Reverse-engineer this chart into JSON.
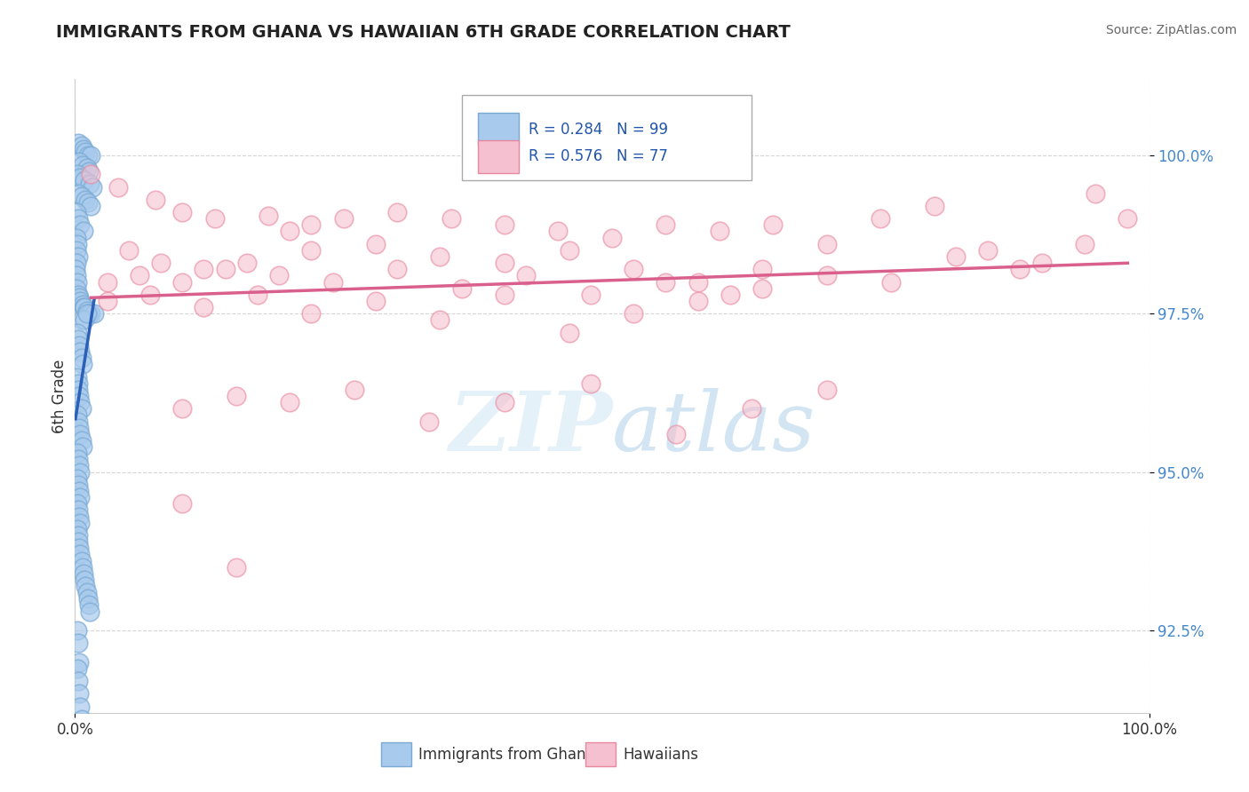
{
  "title": "IMMIGRANTS FROM GHANA VS HAWAIIAN 6TH GRADE CORRELATION CHART",
  "source": "Source: ZipAtlas.com",
  "ylabel": "6th Grade",
  "legend_blue_label": "Immigrants from Ghana",
  "legend_pink_label": "Hawaiians",
  "yticks": [
    92.5,
    95.0,
    97.5,
    100.0
  ],
  "ytick_labels": [
    "92.5%",
    "95.0%",
    "97.5%",
    "100.0%"
  ],
  "xlim": [
    0.0,
    100.0
  ],
  "ylim": [
    91.2,
    101.2
  ],
  "blue_color": "#A8CAEC",
  "blue_edge_color": "#7AAAD4",
  "blue_line_color": "#2B5FB8",
  "pink_color": "#F5C0CF",
  "pink_edge_color": "#E8889E",
  "pink_line_color": "#D95F8C",
  "background_color": "#FFFFFF",
  "tick_color": "#4488CC",
  "blue_x": [
    0.3,
    0.6,
    0.8,
    1.0,
    1.2,
    1.5,
    0.4,
    0.7,
    1.1,
    1.3,
    0.2,
    0.5,
    0.9,
    1.4,
    1.6,
    0.3,
    0.6,
    1.0,
    1.2,
    1.5,
    0.1,
    0.3,
    0.5,
    0.8,
    0.1,
    0.2,
    0.1,
    0.3,
    0.1,
    0.05,
    0.1,
    0.2,
    0.1,
    0.3,
    0.4,
    0.5,
    0.7,
    0.8,
    0.9,
    1.1,
    1.3,
    1.5,
    1.8,
    0.6,
    0.9,
    1.1,
    0.2,
    0.3,
    0.4,
    0.5,
    0.6,
    0.7,
    0.2,
    0.3,
    0.3,
    0.4,
    0.5,
    0.6,
    0.2,
    0.3,
    0.4,
    0.5,
    0.6,
    0.7,
    0.2,
    0.3,
    0.4,
    0.5,
    0.2,
    0.3,
    0.4,
    0.5,
    0.2,
    0.3,
    0.4,
    0.5,
    0.2,
    0.3,
    0.3,
    0.4,
    0.5,
    0.6,
    0.7,
    0.8,
    0.9,
    1.0,
    1.1,
    1.2,
    1.3,
    1.4,
    0.2,
    0.3,
    0.4,
    0.2,
    0.3,
    0.4,
    0.5,
    0.6,
    0.7
  ],
  "blue_y": [
    100.2,
    100.15,
    100.1,
    100.05,
    100.0,
    100.0,
    99.9,
    99.85,
    99.8,
    99.75,
    99.7,
    99.65,
    99.6,
    99.55,
    99.5,
    99.4,
    99.35,
    99.3,
    99.25,
    99.2,
    99.1,
    99.0,
    98.9,
    98.8,
    98.7,
    98.6,
    98.5,
    98.4,
    98.3,
    98.2,
    98.1,
    98.0,
    97.9,
    97.8,
    97.75,
    97.7,
    97.65,
    97.6,
    97.6,
    97.55,
    97.5,
    97.5,
    97.5,
    97.4,
    97.4,
    97.5,
    97.2,
    97.1,
    97.0,
    96.9,
    96.8,
    96.7,
    96.5,
    96.4,
    96.3,
    96.2,
    96.1,
    96.0,
    95.9,
    95.8,
    95.7,
    95.6,
    95.5,
    95.4,
    95.3,
    95.2,
    95.1,
    95.0,
    94.9,
    94.8,
    94.7,
    94.6,
    94.5,
    94.4,
    94.3,
    94.2,
    94.1,
    94.0,
    93.9,
    93.8,
    93.7,
    93.6,
    93.5,
    93.4,
    93.3,
    93.2,
    93.1,
    93.0,
    92.9,
    92.8,
    92.5,
    92.3,
    92.0,
    91.9,
    91.7,
    91.5,
    91.3,
    91.1,
    90.9
  ],
  "pink_x": [
    1.5,
    4.0,
    7.5,
    10.0,
    13.0,
    18.0,
    20.0,
    22.0,
    25.0,
    30.0,
    35.0,
    40.0,
    45.0,
    50.0,
    55.0,
    60.0,
    65.0,
    70.0,
    75.0,
    80.0,
    85.0,
    90.0,
    95.0,
    98.0,
    5.0,
    8.0,
    12.0,
    16.0,
    22.0,
    28.0,
    34.0,
    40.0,
    46.0,
    52.0,
    58.0,
    64.0,
    70.0,
    76.0,
    82.0,
    88.0,
    94.0,
    3.0,
    6.0,
    10.0,
    14.0,
    19.0,
    24.0,
    30.0,
    36.0,
    42.0,
    48.0,
    55.0,
    61.0,
    3.0,
    7.0,
    12.0,
    17.0,
    22.0,
    28.0,
    34.0,
    40.0,
    46.0,
    52.0,
    58.0,
    64.0,
    10.0,
    15.0,
    20.0,
    26.0,
    33.0,
    40.0,
    48.0,
    56.0,
    63.0,
    70.0,
    10.0,
    15.0
  ],
  "pink_y": [
    99.7,
    99.5,
    99.3,
    99.1,
    99.0,
    99.05,
    98.8,
    98.9,
    99.0,
    99.1,
    99.0,
    98.9,
    98.8,
    98.7,
    98.9,
    98.8,
    98.9,
    98.6,
    99.0,
    99.2,
    98.5,
    98.3,
    99.4,
    99.0,
    98.5,
    98.3,
    98.2,
    98.3,
    98.5,
    98.6,
    98.4,
    98.3,
    98.5,
    98.2,
    98.0,
    98.2,
    98.1,
    98.0,
    98.4,
    98.2,
    98.6,
    98.0,
    98.1,
    98.0,
    98.2,
    98.1,
    98.0,
    98.2,
    97.9,
    98.1,
    97.8,
    98.0,
    97.8,
    97.7,
    97.8,
    97.6,
    97.8,
    97.5,
    97.7,
    97.4,
    97.8,
    97.2,
    97.5,
    97.7,
    97.9,
    96.0,
    96.2,
    96.1,
    96.3,
    95.8,
    96.1,
    96.4,
    95.6,
    96.0,
    96.3,
    94.5,
    93.5
  ]
}
